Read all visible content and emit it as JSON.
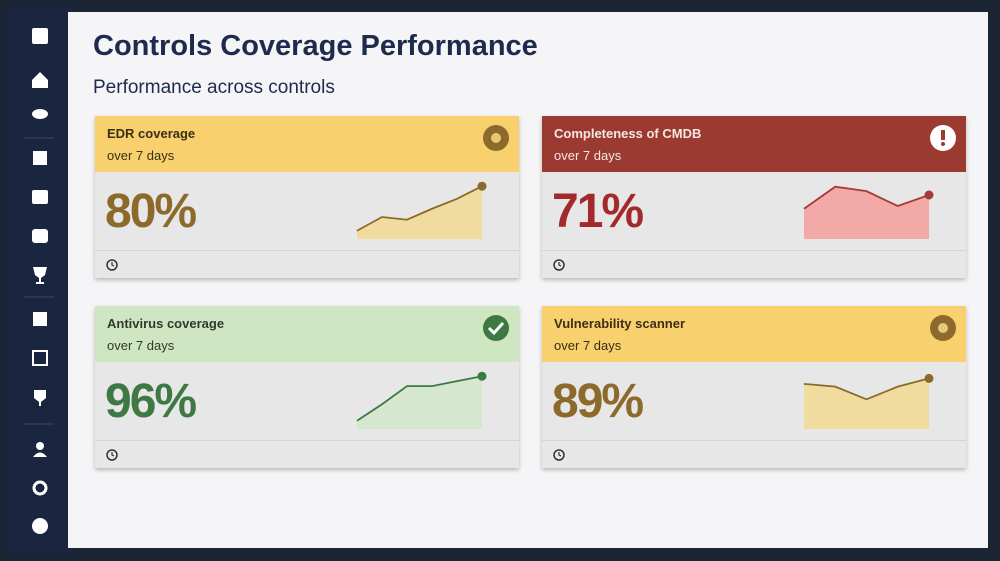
{
  "header": {
    "title": "Controls Coverage Performance",
    "subtitle": "Performance across controls"
  },
  "cards": [
    {
      "title": "EDR coverage",
      "period": "over 7 days",
      "value": "80%",
      "status": "warning",
      "trend": [
        15,
        40,
        35,
        55,
        73,
        96
      ]
    },
    {
      "title": "Completeness of CMDB",
      "period": "over 7 days",
      "value": "71%",
      "status": "danger",
      "trend": [
        55,
        95,
        87,
        60,
        80
      ]
    },
    {
      "title": "Antivirus coverage",
      "period": "over 7 days",
      "value": "96%",
      "status": "good",
      "trend": [
        15,
        45,
        78,
        78,
        87,
        96
      ]
    },
    {
      "title": "Vulnerability scanner",
      "period": "over 7 days",
      "value": "89%",
      "status": "warning",
      "trend": [
        82,
        77,
        54,
        77,
        92
      ]
    }
  ]
}
